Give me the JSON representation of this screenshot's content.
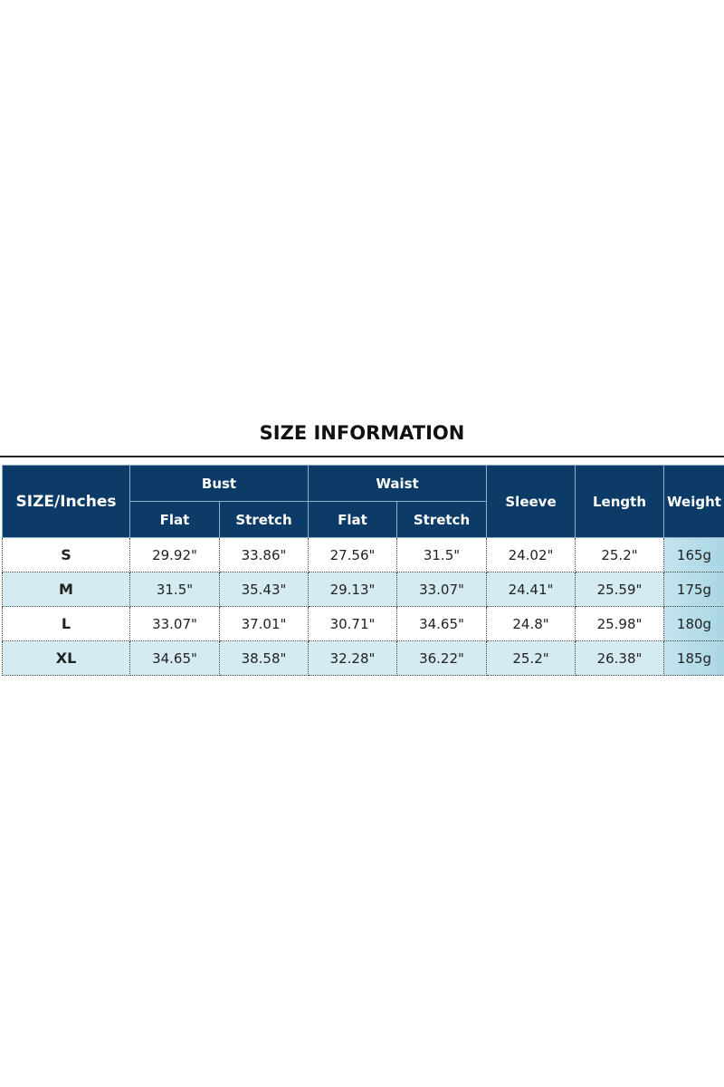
{
  "title": "SIZE INFORMATION",
  "header": {
    "size": "SIZE/Inches",
    "bust": "Bust",
    "waist": "Waist",
    "sleeve": "Sleeve",
    "length": "Length",
    "weight": "Weight",
    "flat": "Flat",
    "stretch": "Stretch"
  },
  "rows": [
    {
      "size": "S",
      "bust_flat": "29.92\"",
      "bust_stretch": "33.86\"",
      "waist_flat": "27.56\"",
      "waist_stretch": "31.5\"",
      "sleeve": "24.02\"",
      "length": "25.2\"",
      "weight": "165g"
    },
    {
      "size": "M",
      "bust_flat": "31.5\"",
      "bust_stretch": "35.43\"",
      "waist_flat": "29.13\"",
      "waist_stretch": "33.07\"",
      "sleeve": "24.41\"",
      "length": "25.59\"",
      "weight": "175g"
    },
    {
      "size": "L",
      "bust_flat": "33.07\"",
      "bust_stretch": "37.01\"",
      "waist_flat": "30.71\"",
      "waist_stretch": "34.65\"",
      "sleeve": "24.8\"",
      "length": "25.98\"",
      "weight": "180g"
    },
    {
      "size": "XL",
      "bust_flat": "34.65\"",
      "bust_stretch": "38.58\"",
      "waist_flat": "32.28\"",
      "waist_stretch": "36.22\"",
      "sleeve": "25.2\"",
      "length": "26.38\"",
      "weight": "185g"
    }
  ],
  "colors": {
    "header": "#0b3b66",
    "alt_row": "#d5ebf2",
    "weight_col": "#b4dde8"
  }
}
